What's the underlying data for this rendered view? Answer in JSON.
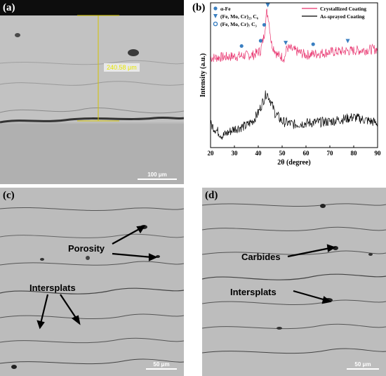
{
  "panels": {
    "a": {
      "label": "(a)",
      "measurement": "240.58 μm",
      "scale": "100 μm"
    },
    "b": {
      "label": "(b)"
    },
    "c": {
      "label": "(c)",
      "scale": "50 μm",
      "annotations": [
        "Porosity",
        "Intersplats"
      ]
    },
    "d": {
      "label": "(d)",
      "scale": "50 μm",
      "annotations": [
        "Carbides",
        "Intersplats"
      ]
    }
  },
  "chart_data": {
    "type": "line",
    "xlabel": "2θ (degree)",
    "ylabel": "Intensity (a.u.)",
    "xlim": [
      20,
      90
    ],
    "xticks": [
      20,
      30,
      40,
      50,
      60,
      70,
      80,
      90
    ],
    "legend_placement": "top-right",
    "series": [
      {
        "name": "Crystallized Coating",
        "color": "#e8336e",
        "x": [
          20,
          30,
          38,
          41,
          42.5,
          43.5,
          44.3,
          45.5,
          48,
          51,
          52,
          60,
          70,
          80,
          90
        ],
        "y": [
          0.62,
          0.63,
          0.64,
          0.67,
          0.78,
          0.94,
          0.9,
          0.72,
          0.64,
          0.62,
          0.69,
          0.64,
          0.66,
          0.67,
          0.68
        ]
      },
      {
        "name": "As-sprayed Coating",
        "color": "#000000",
        "x": [
          20,
          25,
          30,
          35,
          38,
          40,
          42,
          43.5,
          45,
          47,
          50,
          55,
          60,
          70,
          80,
          90
        ],
        "y": [
          0.16,
          0.08,
          0.13,
          0.15,
          0.19,
          0.24,
          0.32,
          0.38,
          0.33,
          0.24,
          0.18,
          0.16,
          0.17,
          0.18,
          0.21,
          0.17
        ]
      }
    ],
    "phases": [
      {
        "label": "α-Fe",
        "marker": "circle",
        "color": "#3a7fc1"
      },
      {
        "label": "(Fe, Mo, Cr)₂₃ C₆",
        "marker": "triangle",
        "color": "#3a7fc1"
      },
      {
        "label": "(Fe, Mo, Cr)₇ C₃",
        "marker": "circle-outline",
        "color": "#3a7fc1"
      }
    ],
    "peak_markers": [
      {
        "x": 33,
        "marker": "circle"
      },
      {
        "x": 41,
        "marker": "circle"
      },
      {
        "x": 42.5,
        "marker": "circle"
      },
      {
        "x": 44,
        "marker": "triangle"
      },
      {
        "x": 51.5,
        "marker": "triangle"
      },
      {
        "x": 63,
        "marker": "circle"
      },
      {
        "x": 77.5,
        "marker": "triangle"
      }
    ]
  }
}
